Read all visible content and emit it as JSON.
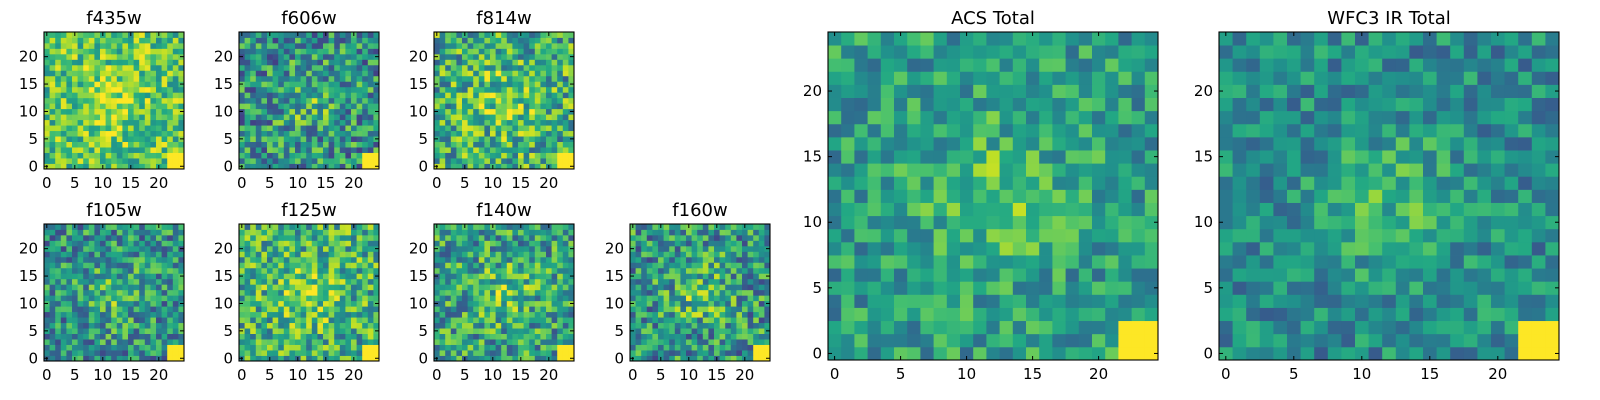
{
  "chart_data": [
    {
      "type": "heatmap",
      "title": "f435w",
      "grid_size": 25,
      "colormap": "viridis",
      "xticks": [
        "0",
        "5",
        "10",
        "15",
        "20"
      ],
      "yticks": [
        "0",
        "5",
        "10",
        "15",
        "20"
      ],
      "xlim": [
        -0.5,
        24.5
      ],
      "ylim": [
        -0.5,
        24.5
      ],
      "features": {
        "bright_corner": "bottom-right",
        "bias": 0.72,
        "contrast": 0.26
      }
    },
    {
      "type": "heatmap",
      "title": "f606w",
      "grid_size": 25,
      "colormap": "viridis",
      "xticks": [
        "0",
        "5",
        "10",
        "15",
        "20"
      ],
      "yticks": [
        "0",
        "5",
        "10",
        "15",
        "20"
      ],
      "xlim": [
        -0.5,
        24.5
      ],
      "ylim": [
        -0.5,
        24.5
      ],
      "features": {
        "bright_corner": "bottom-right",
        "bias": 0.5,
        "contrast": 0.32
      }
    },
    {
      "type": "heatmap",
      "title": "f814w",
      "grid_size": 25,
      "colormap": "viridis",
      "xticks": [
        "0",
        "5",
        "10",
        "15",
        "20"
      ],
      "yticks": [
        "0",
        "5",
        "10",
        "15",
        "20"
      ],
      "xlim": [
        -0.5,
        24.5
      ],
      "ylim": [
        -0.5,
        24.5
      ],
      "features": {
        "bright_corner": "bottom-right",
        "bias": 0.62,
        "contrast": 0.32
      }
    },
    {
      "type": "heatmap",
      "title": "f105w",
      "grid_size": 25,
      "colormap": "viridis",
      "xticks": [
        "0",
        "5",
        "10",
        "15",
        "20"
      ],
      "yticks": [
        "0",
        "5",
        "10",
        "15",
        "20"
      ],
      "xlim": [
        -0.5,
        24.5
      ],
      "ylim": [
        -0.5,
        24.5
      ],
      "features": {
        "bright_corner": "bottom-right",
        "bias": 0.5,
        "contrast": 0.3
      }
    },
    {
      "type": "heatmap",
      "title": "f125w",
      "grid_size": 25,
      "colormap": "viridis",
      "xticks": [
        "0",
        "5",
        "10",
        "15",
        "20"
      ],
      "yticks": [
        "0",
        "5",
        "10",
        "15",
        "20"
      ],
      "xlim": [
        -0.5,
        24.5
      ],
      "ylim": [
        -0.5,
        24.5
      ],
      "features": {
        "bright_corner": "bottom-right",
        "bias": 0.63,
        "contrast": 0.3
      }
    },
    {
      "type": "heatmap",
      "title": "f140w",
      "grid_size": 25,
      "colormap": "viridis",
      "xticks": [
        "0",
        "5",
        "10",
        "15",
        "20"
      ],
      "yticks": [
        "0",
        "5",
        "10",
        "15",
        "20"
      ],
      "xlim": [
        -0.5,
        24.5
      ],
      "ylim": [
        -0.5,
        24.5
      ],
      "features": {
        "bright_corner": "bottom-right",
        "bias": 0.56,
        "contrast": 0.3
      }
    },
    {
      "type": "heatmap",
      "title": "f160w",
      "grid_size": 25,
      "colormap": "viridis",
      "xticks": [
        "0",
        "5",
        "10",
        "15",
        "20"
      ],
      "yticks": [
        "0",
        "5",
        "10",
        "15",
        "20"
      ],
      "xlim": [
        -0.5,
        24.5
      ],
      "ylim": [
        -0.5,
        24.5
      ],
      "features": {
        "bright_corner": "bottom-right",
        "bias": 0.52,
        "contrast": 0.32
      }
    },
    {
      "type": "heatmap",
      "title": "ACS Total",
      "grid_size": 25,
      "colormap": "viridis",
      "xticks": [
        "0",
        "5",
        "10",
        "15",
        "20"
      ],
      "yticks": [
        "0",
        "5",
        "10",
        "15",
        "20"
      ],
      "xlim": [
        -0.5,
        24.5
      ],
      "ylim": [
        -0.5,
        24.5
      ],
      "features": {
        "bright_corner": "bottom-right",
        "bias": 0.55,
        "contrast": 0.22
      }
    },
    {
      "type": "heatmap",
      "title": "WFC3 IR Total",
      "grid_size": 25,
      "colormap": "viridis",
      "xticks": [
        "0",
        "5",
        "10",
        "15",
        "20"
      ],
      "yticks": [
        "0",
        "5",
        "10",
        "15",
        "20"
      ],
      "xlim": [
        -0.5,
        24.5
      ],
      "ylim": [
        -0.5,
        24.5
      ],
      "features": {
        "bright_corner": "bottom-right",
        "bias": 0.48,
        "contrast": 0.2
      }
    }
  ]
}
